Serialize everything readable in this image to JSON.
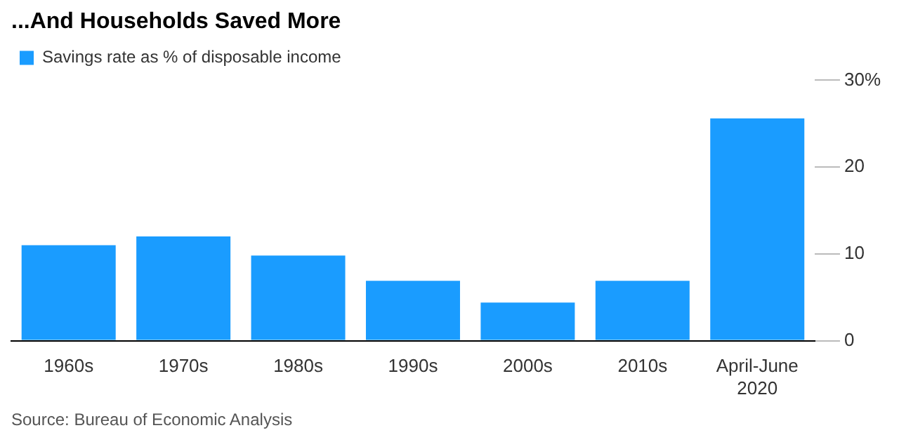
{
  "chart_data": {
    "type": "bar",
    "title": "...And Households Saved More",
    "categories": [
      "1960s",
      "1970s",
      "1980s",
      "1990s",
      "2000s",
      "2010s",
      "April-June 2020"
    ],
    "series": [
      {
        "name": "Savings rate as % of disposable income",
        "color": "#1a9cff",
        "values": [
          11.0,
          12.0,
          9.8,
          6.9,
          4.4,
          6.9,
          25.6
        ]
      }
    ],
    "ylim": [
      0,
      30
    ],
    "yticks": [
      0,
      10,
      20,
      {
        "value": 30,
        "label": "30%"
      }
    ],
    "grid": false,
    "legend": "top left",
    "annotations": [
      "Source: Bureau of Economic Analysis"
    ]
  }
}
